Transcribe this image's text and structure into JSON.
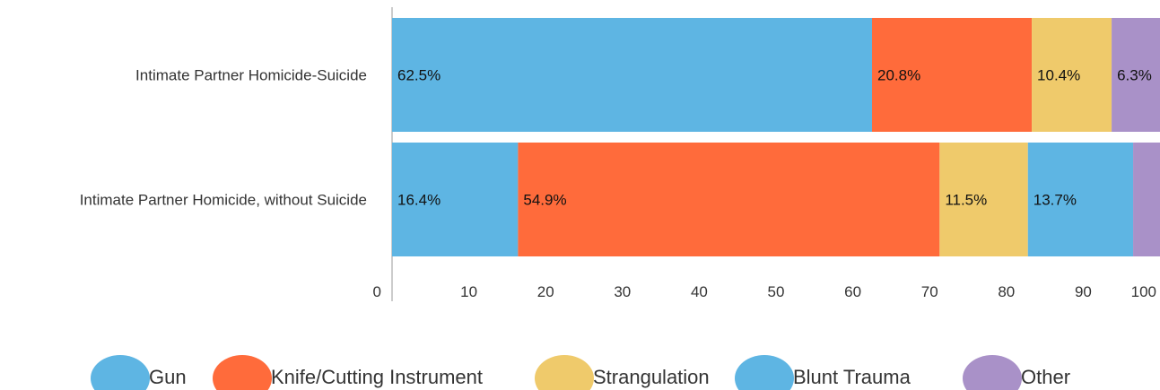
{
  "chart_data": {
    "type": "bar",
    "orientation": "horizontal",
    "stacked": true,
    "categories": [
      "Intimate Partner Homicide-Suicide",
      "Intimate Partner Homicide, without Suicide"
    ],
    "series": [
      {
        "name": "Gun",
        "color": "#5eb5e3",
        "values": [
          62.5,
          16.4
        ],
        "labels": [
          "62.5%",
          "16.4%"
        ]
      },
      {
        "name": "Knife/Cutting Instrument",
        "color": "#ff6b3b",
        "values": [
          20.8,
          54.9
        ],
        "labels": [
          "20.8%",
          "54.9%"
        ]
      },
      {
        "name": "Strangulation",
        "color": "#efca6b",
        "values": [
          10.4,
          11.5
        ],
        "labels": [
          "10.4%",
          "11.5%"
        ]
      },
      {
        "name": "Blunt Trauma",
        "color": "#5eb5e3",
        "values": [
          0,
          13.7
        ],
        "labels": [
          "",
          "13.7%"
        ]
      },
      {
        "name": "Other",
        "color": "#a991c8",
        "values": [
          6.3,
          3.5
        ],
        "labels": [
          "6.3%",
          ""
        ]
      }
    ],
    "xlim": [
      0,
      100
    ],
    "xticks": [
      "0",
      "10",
      "20",
      "30",
      "40",
      "50",
      "60",
      "70",
      "80",
      "90",
      "100"
    ],
    "grid": false,
    "legend_position": "bottom"
  }
}
